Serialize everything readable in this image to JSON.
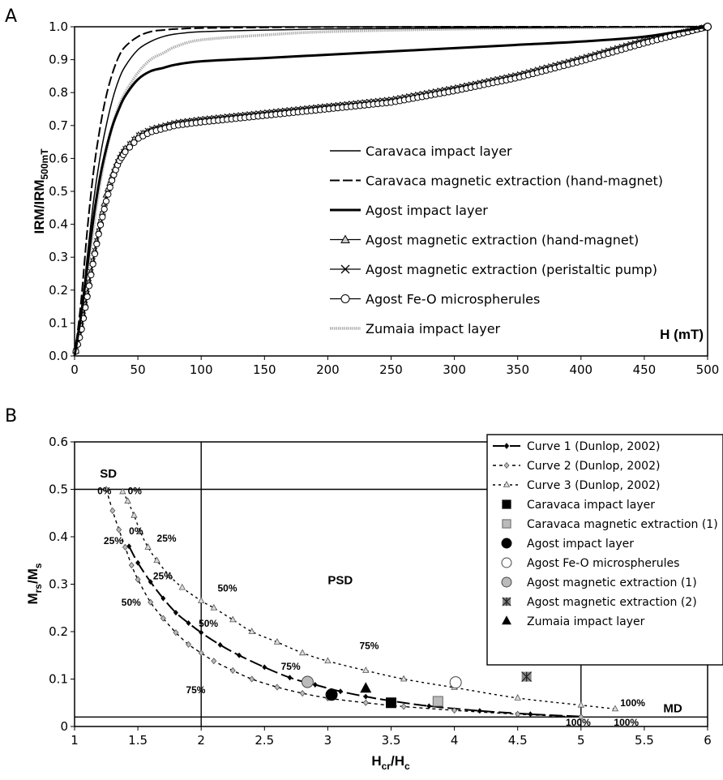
{
  "chart_data": [
    {
      "panel": "A",
      "type": "line",
      "ylabel": "IRM/IRM",
      "ylabel_sub": "500mT",
      "xlabel": "H (mT)",
      "xlim": [
        0,
        500
      ],
      "ylim": [
        0,
        1.0
      ],
      "xticks": [
        "0",
        "50",
        "100",
        "150",
        "200",
        "250",
        "300",
        "350",
        "400",
        "450",
        "500"
      ],
      "yticks": [
        "0.0",
        "0.1",
        "0.2",
        "0.3",
        "0.4",
        "0.5",
        "0.6",
        "0.7",
        "0.8",
        "0.9",
        "1.0"
      ],
      "legend_position": "center-right",
      "series": [
        {
          "name": "Caravaca impact layer",
          "color": "#000000",
          "style": "solid-thin",
          "x": [
            0,
            5,
            10,
            15,
            20,
            25,
            30,
            35,
            40,
            50,
            60,
            70,
            80,
            100,
            150,
            200,
            300,
            400,
            500
          ],
          "y": [
            0,
            0.12,
            0.3,
            0.47,
            0.6,
            0.7,
            0.78,
            0.84,
            0.88,
            0.93,
            0.955,
            0.97,
            0.978,
            0.985,
            0.99,
            0.993,
            0.996,
            0.998,
            1.0
          ]
        },
        {
          "name": "Caravaca magnetic extraction (hand-magnet)",
          "color": "#000000",
          "style": "dashed",
          "x": [
            0,
            5,
            10,
            15,
            20,
            25,
            30,
            35,
            40,
            50,
            60,
            70,
            80,
            100,
            150,
            200,
            300,
            400,
            500
          ],
          "y": [
            0,
            0.16,
            0.38,
            0.56,
            0.69,
            0.79,
            0.86,
            0.91,
            0.94,
            0.97,
            0.985,
            0.99,
            0.993,
            0.996,
            0.998,
            0.999,
            1.0,
            1.0,
            1.0
          ]
        },
        {
          "name": "Agost impact layer",
          "color": "#000000",
          "style": "solid-thick",
          "x": [
            0,
            5,
            10,
            15,
            20,
            25,
            30,
            35,
            40,
            50,
            60,
            70,
            80,
            100,
            150,
            200,
            250,
            300,
            350,
            400,
            450,
            500
          ],
          "y": [
            0,
            0.12,
            0.27,
            0.42,
            0.54,
            0.63,
            0.7,
            0.75,
            0.79,
            0.84,
            0.865,
            0.875,
            0.885,
            0.895,
            0.905,
            0.915,
            0.925,
            0.935,
            0.945,
            0.955,
            0.97,
            1.0
          ]
        },
        {
          "name": "Agost magnetic extraction (hand-magnet)",
          "color": "#000000",
          "style": "triangle-markers",
          "x": [
            0,
            5,
            10,
            15,
            20,
            25,
            30,
            35,
            40,
            50,
            60,
            70,
            80,
            100,
            150,
            200,
            250,
            300,
            350,
            400,
            450,
            500
          ],
          "y": [
            0,
            0.08,
            0.19,
            0.3,
            0.4,
            0.49,
            0.55,
            0.6,
            0.63,
            0.67,
            0.685,
            0.695,
            0.705,
            0.715,
            0.735,
            0.755,
            0.775,
            0.81,
            0.85,
            0.9,
            0.955,
            1.0
          ]
        },
        {
          "name": "Agost magnetic extraction (peristaltic pump)",
          "color": "#000000",
          "style": "x-markers",
          "x": [
            0,
            5,
            10,
            15,
            20,
            25,
            30,
            35,
            40,
            50,
            60,
            70,
            80,
            100,
            150,
            200,
            250,
            300,
            350,
            400,
            450,
            500
          ],
          "y": [
            0,
            0.08,
            0.19,
            0.3,
            0.4,
            0.48,
            0.55,
            0.6,
            0.63,
            0.67,
            0.69,
            0.7,
            0.71,
            0.72,
            0.74,
            0.76,
            0.78,
            0.815,
            0.855,
            0.905,
            0.96,
            1.0
          ]
        },
        {
          "name": "Agost Fe-O microspherules",
          "color": "#000000",
          "style": "circle-markers",
          "x": [
            0,
            5,
            10,
            15,
            20,
            25,
            30,
            35,
            40,
            50,
            60,
            70,
            80,
            100,
            150,
            200,
            250,
            300,
            350,
            400,
            450,
            500
          ],
          "y": [
            0,
            0.07,
            0.18,
            0.29,
            0.39,
            0.47,
            0.54,
            0.59,
            0.62,
            0.66,
            0.68,
            0.69,
            0.7,
            0.71,
            0.73,
            0.75,
            0.77,
            0.805,
            0.845,
            0.895,
            0.95,
            1.0
          ]
        },
        {
          "name": "Zumaia impact layer",
          "color": "#aaaaaa",
          "style": "grey-thick",
          "x": [
            0,
            5,
            10,
            15,
            20,
            25,
            30,
            35,
            40,
            50,
            60,
            70,
            80,
            100,
            150,
            200,
            300,
            400,
            500
          ],
          "y": [
            0,
            0.1,
            0.24,
            0.39,
            0.52,
            0.62,
            0.7,
            0.76,
            0.8,
            0.86,
            0.9,
            0.92,
            0.94,
            0.96,
            0.975,
            0.985,
            0.993,
            0.997,
            1.0
          ]
        }
      ]
    },
    {
      "panel": "B",
      "type": "scatter",
      "ylabel": "M",
      "ylabel_sub1": "rs",
      "ylabel_mid": "/M",
      "ylabel_sub2": "s",
      "xlabel": "H",
      "xlabel_sub1": "cr",
      "xlabel_mid": "/H",
      "xlabel_sub2": "c",
      "xlim": [
        1,
        6
      ],
      "ylim": [
        0,
        0.6
      ],
      "xticks": [
        "1",
        "1.5",
        "2",
        "2.5",
        "3",
        "3.5",
        "4",
        "4.5",
        "5",
        "5.5",
        "6"
      ],
      "yticks": [
        "0",
        "0.1",
        "0.2",
        "0.3",
        "0.4",
        "0.5",
        "0.6"
      ],
      "legend_position": "top-right",
      "region_labels": [
        {
          "text": "SD",
          "x": 1.2,
          "y": 0.525
        },
        {
          "text": "PSD",
          "x": 3.0,
          "y": 0.3
        },
        {
          "text": "MD",
          "x": 5.65,
          "y": 0.03
        }
      ],
      "guide_lines": {
        "hcr_hc": [
          2,
          5
        ],
        "mrs_ms": [
          0.5,
          0.02
        ]
      },
      "curves": [
        {
          "name": "Curve 1 (Dunlop, 2002)",
          "style": "long-dash-diamond",
          "x": [
            1.43,
            1.5,
            1.6,
            1.7,
            1.8,
            1.9,
            2.0,
            2.15,
            2.3,
            2.5,
            2.7,
            2.9,
            3.1,
            3.3,
            3.5,
            3.8,
            4.2,
            4.6,
            5.0
          ],
          "y": [
            0.38,
            0.345,
            0.305,
            0.27,
            0.24,
            0.218,
            0.198,
            0.172,
            0.15,
            0.125,
            0.103,
            0.088,
            0.074,
            0.063,
            0.054,
            0.043,
            0.033,
            0.026,
            0.021
          ]
        },
        {
          "name": "Curve 2 (Dunlop, 2002)",
          "style": "short-dash-diamond",
          "x": [
            1.25,
            1.3,
            1.35,
            1.4,
            1.45,
            1.5,
            1.6,
            1.7,
            1.8,
            1.9,
            2.0,
            2.1,
            2.25,
            2.4,
            2.6,
            2.8,
            3.0,
            3.3,
            3.6,
            4.0,
            4.5,
            5.0
          ],
          "y": [
            0.5,
            0.455,
            0.415,
            0.378,
            0.34,
            0.31,
            0.262,
            0.228,
            0.198,
            0.173,
            0.155,
            0.138,
            0.118,
            0.1,
            0.083,
            0.07,
            0.06,
            0.05,
            0.042,
            0.034,
            0.026,
            0.02
          ]
        },
        {
          "name": "Curve 3 (Dunlop, 2002)",
          "style": "dotted-triangle",
          "x": [
            1.38,
            1.42,
            1.47,
            1.52,
            1.58,
            1.65,
            1.75,
            1.85,
            2.0,
            2.1,
            2.25,
            2.4,
            2.6,
            2.8,
            3.0,
            3.3,
            3.6,
            4.0,
            4.5,
            5.0,
            5.27
          ],
          "y": [
            0.495,
            0.475,
            0.445,
            0.41,
            0.378,
            0.35,
            0.318,
            0.293,
            0.265,
            0.25,
            0.225,
            0.2,
            0.178,
            0.155,
            0.138,
            0.118,
            0.1,
            0.082,
            0.06,
            0.045,
            0.037
          ]
        }
      ],
      "curve_labels": [
        {
          "text": "0%",
          "x": 1.18,
          "y": 0.49
        },
        {
          "text": "0%",
          "x": 1.42,
          "y": 0.49
        },
        {
          "text": "25%",
          "x": 1.23,
          "y": 0.385
        },
        {
          "text": "0%",
          "x": 1.43,
          "y": 0.405
        },
        {
          "text": "25%",
          "x": 1.65,
          "y": 0.39
        },
        {
          "text": "25%",
          "x": 1.62,
          "y": 0.31
        },
        {
          "text": "50%",
          "x": 1.37,
          "y": 0.255
        },
        {
          "text": "50%",
          "x": 1.98,
          "y": 0.21
        },
        {
          "text": "50%",
          "x": 2.13,
          "y": 0.285
        },
        {
          "text": "75%",
          "x": 1.88,
          "y": 0.07
        },
        {
          "text": "75%",
          "x": 2.63,
          "y": 0.12
        },
        {
          "text": "75%",
          "x": 3.25,
          "y": 0.163
        },
        {
          "text": "100%",
          "x": 4.88,
          "y": 0.002
        },
        {
          "text": "100%",
          "x": 5.26,
          "y": 0.002
        },
        {
          "text": "100%",
          "x": 5.31,
          "y": 0.043
        }
      ],
      "points": [
        {
          "name": "Caravaca impact layer",
          "marker": "square",
          "fill": "#000000",
          "x": 3.5,
          "y": 0.05
        },
        {
          "name": "Caravaca magnetic extraction (1)",
          "marker": "square",
          "fill": "#bbbbbb",
          "x": 3.87,
          "y": 0.053
        },
        {
          "name": "Agost impact layer",
          "marker": "circle",
          "fill": "#000000",
          "x": 3.03,
          "y": 0.067
        },
        {
          "name": "Agost Fe-O microspherules",
          "marker": "circle",
          "fill": "#ffffff",
          "x": 4.01,
          "y": 0.093
        },
        {
          "name": "Agost magnetic extraction (1)",
          "marker": "circle",
          "fill": "#bbbbbb",
          "x": 2.84,
          "y": 0.094
        },
        {
          "name": "Agost magnetic extraction (2)",
          "marker": "xsquare",
          "fill": "#888888",
          "x": 4.57,
          "y": 0.105
        },
        {
          "name": "Zumaia impact layer",
          "marker": "triangle",
          "fill": "#000000",
          "x": 3.3,
          "y": 0.08
        }
      ]
    }
  ],
  "panel_labels": [
    "A",
    "B"
  ]
}
